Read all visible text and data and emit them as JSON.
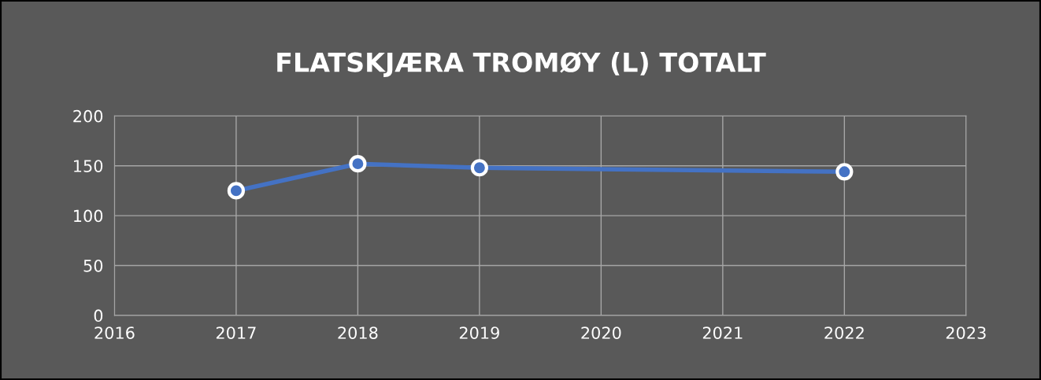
{
  "chart_data": {
    "type": "line",
    "title": "FLATSKJÆRA TROMØY (L) TOTALT",
    "x": [
      2017,
      2018,
      2019,
      2022
    ],
    "series": [
      {
        "color": "#4472c4",
        "values": [
          125,
          152,
          148,
          144
        ]
      }
    ],
    "xlim": [
      2016,
      2023
    ],
    "xticks": [
      2016,
      2017,
      2018,
      2019,
      2020,
      2021,
      2022,
      2023
    ],
    "ylim": [
      0,
      200
    ],
    "yticks": [
      0,
      50,
      100,
      150,
      200
    ],
    "grid": true,
    "marker": "circle",
    "line_style": "solid",
    "legend": false
  }
}
